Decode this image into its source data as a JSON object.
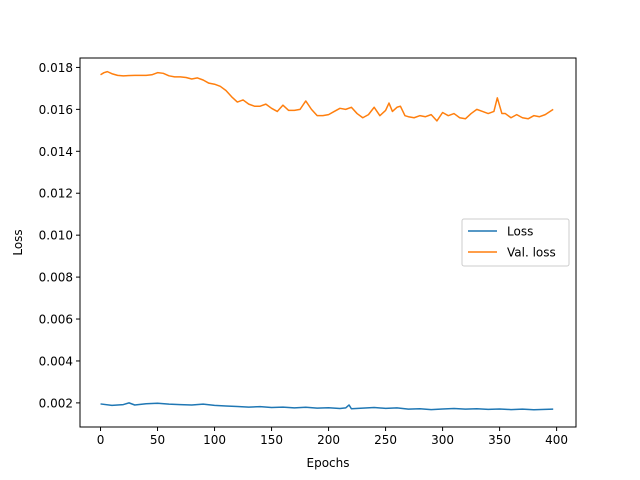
{
  "chart_data": {
    "type": "line",
    "title": "",
    "xlabel": "Epochs",
    "ylabel": "Loss",
    "xlim": [
      -18,
      417
    ],
    "ylim": [
      0.00085,
      0.01845
    ],
    "xticks": [
      0,
      50,
      100,
      150,
      200,
      250,
      300,
      350,
      400
    ],
    "xtick_labels": [
      "0",
      "50",
      "100",
      "150",
      "200",
      "250",
      "300",
      "350",
      "400"
    ],
    "yticks": [
      0.002,
      0.004,
      0.006,
      0.008,
      0.01,
      0.012,
      0.014,
      0.016,
      0.018
    ],
    "ytick_labels": [
      "0.002",
      "0.004",
      "0.006",
      "0.008",
      "0.010",
      "0.012",
      "0.014",
      "0.016",
      "0.018"
    ],
    "grid": false,
    "legend_position": "center-right",
    "series": [
      {
        "name": "Loss",
        "color": "#1f77b4",
        "x": [
          0,
          10,
          20,
          25,
          30,
          40,
          50,
          60,
          70,
          80,
          90,
          100,
          110,
          120,
          130,
          140,
          150,
          160,
          170,
          180,
          190,
          200,
          210,
          215,
          218,
          220,
          230,
          240,
          250,
          260,
          270,
          280,
          290,
          300,
          310,
          320,
          330,
          340,
          350,
          360,
          370,
          380,
          390,
          397
        ],
        "y": [
          0.00195,
          0.00188,
          0.00192,
          0.002,
          0.0019,
          0.00196,
          0.00198,
          0.00194,
          0.00192,
          0.0019,
          0.00194,
          0.00188,
          0.00185,
          0.00183,
          0.0018,
          0.00182,
          0.00178,
          0.0018,
          0.00176,
          0.00179,
          0.00175,
          0.00177,
          0.00173,
          0.00176,
          0.0019,
          0.00172,
          0.00175,
          0.00178,
          0.00174,
          0.00176,
          0.0017,
          0.00172,
          0.00168,
          0.00171,
          0.00173,
          0.0017,
          0.00172,
          0.00169,
          0.00171,
          0.00168,
          0.0017,
          0.00167,
          0.00169,
          0.0017
        ]
      },
      {
        "name": "Val. loss",
        "color": "#ff7f0e",
        "x": [
          0,
          3,
          6,
          10,
          15,
          20,
          30,
          40,
          45,
          50,
          55,
          60,
          65,
          70,
          75,
          80,
          85,
          90,
          95,
          100,
          105,
          110,
          115,
          120,
          125,
          130,
          135,
          140,
          145,
          150,
          155,
          160,
          165,
          170,
          175,
          180,
          185,
          190,
          195,
          200,
          205,
          210,
          215,
          220,
          225,
          230,
          235,
          240,
          245,
          250,
          253,
          256,
          260,
          263,
          267,
          270,
          275,
          280,
          285,
          290,
          295,
          300,
          305,
          310,
          315,
          320,
          325,
          330,
          335,
          340,
          345,
          348,
          352,
          355,
          360,
          365,
          370,
          375,
          380,
          385,
          390,
          397
        ],
        "y": [
          0.01765,
          0.01775,
          0.0178,
          0.0177,
          0.01762,
          0.0176,
          0.01762,
          0.01762,
          0.01765,
          0.01775,
          0.01772,
          0.0176,
          0.01755,
          0.01755,
          0.01752,
          0.01745,
          0.0175,
          0.0174,
          0.01725,
          0.0172,
          0.0171,
          0.0169,
          0.0166,
          0.01635,
          0.01645,
          0.01625,
          0.01615,
          0.01615,
          0.01625,
          0.01605,
          0.0159,
          0.0162,
          0.01595,
          0.01595,
          0.016,
          0.0164,
          0.016,
          0.0157,
          0.0157,
          0.01575,
          0.0159,
          0.01605,
          0.016,
          0.0161,
          0.0158,
          0.0156,
          0.01575,
          0.0161,
          0.0157,
          0.01595,
          0.0163,
          0.0159,
          0.0161,
          0.01615,
          0.0157,
          0.01565,
          0.0156,
          0.0157,
          0.01565,
          0.01575,
          0.01545,
          0.01585,
          0.0157,
          0.0158,
          0.0156,
          0.01555,
          0.0158,
          0.016,
          0.0159,
          0.0158,
          0.0159,
          0.01655,
          0.0158,
          0.0158,
          0.0156,
          0.01575,
          0.0156,
          0.01555,
          0.0157,
          0.01565,
          0.01575,
          0.016
        ]
      }
    ]
  }
}
